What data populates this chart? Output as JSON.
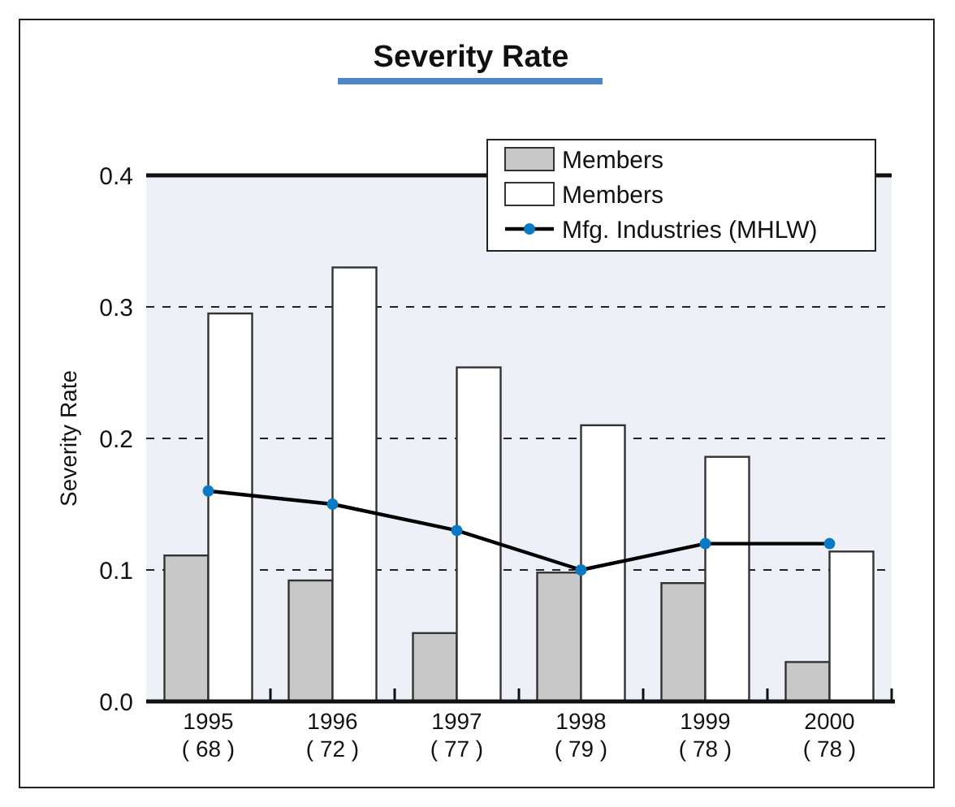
{
  "chart_data": {
    "type": "bar",
    "title": "Severity Rate",
    "ylabel": "Severity Rate",
    "categories": [
      "1995\n( 68 )",
      "1996\n( 72 )",
      "1997\n( 77 )",
      "1998\n( 79 )",
      "1999\n( 78 )",
      "2000\n( 78 )"
    ],
    "series": [
      {
        "name": "Members",
        "color": "#c8c8c8",
        "values": [
          0.111,
          0.092,
          0.052,
          0.098,
          0.09,
          0.03
        ]
      },
      {
        "name": "Members",
        "color": "#ffffff",
        "values": [
          0.295,
          0.33,
          0.254,
          0.21,
          0.186,
          0.114
        ]
      },
      {
        "name": "Mfg. Industries (MHLW)",
        "type": "line",
        "color": "#000000",
        "colors": [
          "#0a7ac4",
          "#0a7ac4",
          "#0a7ac4",
          "#0a7ac4",
          "#0a7ac4",
          "#0a7ac4"
        ],
        "marker": "circle",
        "values": [
          0.16,
          0.15,
          0.13,
          0.1,
          0.12,
          0.12
        ]
      }
    ],
    "ylim": [
      0,
      0.4
    ],
    "yticks": [
      {
        "value": 0,
        "label": "0.0"
      },
      {
        "value": 0.1,
        "label": "0.1"
      },
      {
        "value": 0.2,
        "label": "0.2"
      },
      {
        "value": 0.3,
        "label": "0.3"
      },
      {
        "value": 0.4,
        "label": "0.4"
      }
    ],
    "grid": "y",
    "legend": "top right"
  }
}
